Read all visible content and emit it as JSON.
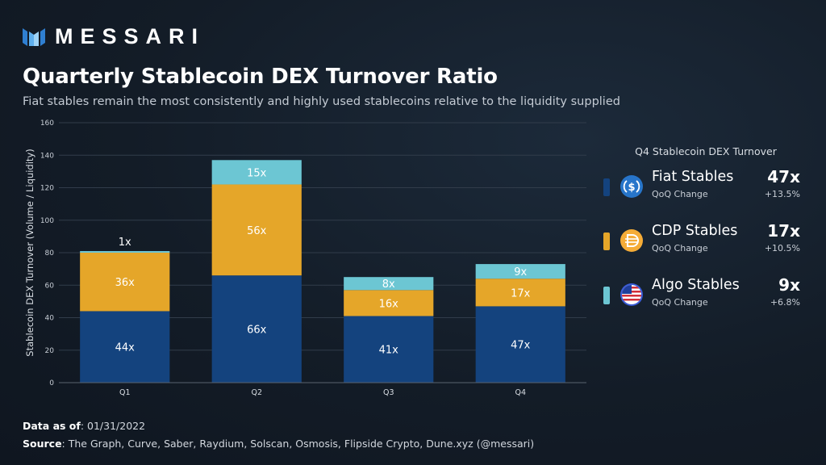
{
  "brand": {
    "name": "MESSARI"
  },
  "header": {
    "title": "Quarterly Stablecoin DEX Turnover Ratio",
    "subtitle": "Fiat stables remain the most consistently and highly used stablecoins relative to the liquidity supplied"
  },
  "chart_data": {
    "type": "bar",
    "stacked": true,
    "categories": [
      "Q1",
      "Q2",
      "Q3",
      "Q4"
    ],
    "series": [
      {
        "name": "Fiat Stables",
        "values": [
          44,
          66,
          41,
          47
        ],
        "labels": [
          "44x",
          "66x",
          "41x",
          "47x"
        ],
        "color": "#14437e"
      },
      {
        "name": "CDP Stables",
        "values": [
          36,
          56,
          16,
          17
        ],
        "labels": [
          "36x",
          "56x",
          "16x",
          "17x"
        ],
        "color": "#e5a629"
      },
      {
        "name": "Algo Stables",
        "values": [
          1,
          15,
          8,
          9
        ],
        "labels": [
          "1x",
          "15x",
          "8x",
          "9x"
        ],
        "color": "#6cc6d3"
      }
    ],
    "ylabel": "Stablecoin DEX Turnover (Volume / Liquidity)",
    "xlabel": "",
    "ylim": [
      0,
      160
    ],
    "yticks": [
      0,
      20,
      40,
      60,
      80,
      100,
      120,
      140,
      160
    ],
    "grid": true,
    "legend_position": "right"
  },
  "legend": {
    "title": "Q4 Stablecoin DEX Turnover",
    "items": [
      {
        "name": "Fiat Stables",
        "sub": "QoQ Change",
        "value": "47x",
        "change": "+13.5%",
        "color": "#14437e",
        "icon": "usdc-coin-icon"
      },
      {
        "name": "CDP Stables",
        "sub": "QoQ Change",
        "value": "17x",
        "change": "+10.5%",
        "color": "#e5a629",
        "icon": "dai-coin-icon"
      },
      {
        "name": "Algo Stables",
        "sub": "QoQ Change",
        "value": "9x",
        "change": "+6.8%",
        "color": "#6cc6d3",
        "icon": "ust-coin-icon"
      }
    ]
  },
  "footer": {
    "date_label": "Data as of",
    "date_value": ": 01/31/2022",
    "source_label": "Source",
    "source_value": ": The Graph, Curve, Saber, Raydium, Solscan, Osmosis, Flipside Crypto, Dune.xyz (@messari)"
  }
}
